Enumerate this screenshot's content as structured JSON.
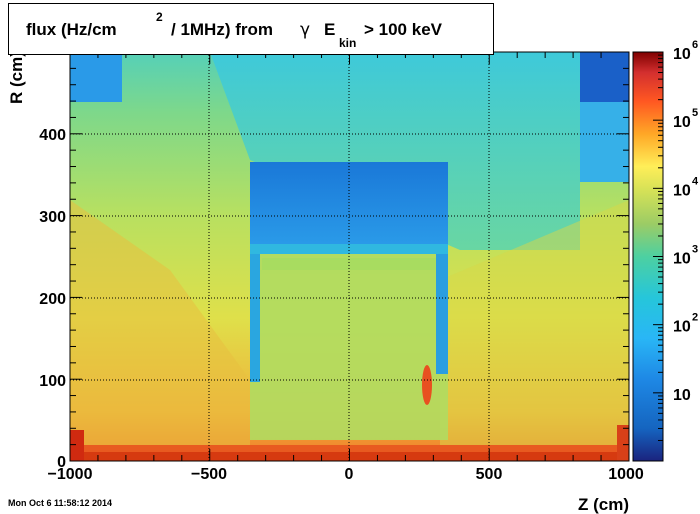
{
  "title": {
    "part1": "flux (Hz/cm",
    "sup": "2",
    "part2": "/ 1MHz) from",
    "gamma": "γ",
    "E": "E",
    "sub": "kin",
    "part3": "> 100 keV"
  },
  "footer": "Mon Oct  6 11:58:12 2014",
  "chart_data": {
    "type": "heatmap",
    "xlabel": "Z (cm)",
    "ylabel": "R (cm)",
    "xlim": [
      -1000,
      1000
    ],
    "ylim": [
      0,
      500
    ],
    "x_ticks": [
      -1000,
      -500,
      0,
      500,
      1000
    ],
    "x_tick_labels": [
      "−1000",
      "−500",
      "0",
      "500",
      "1000"
    ],
    "y_ticks": [
      0,
      100,
      200,
      300,
      400
    ],
    "y_tick_labels": [
      "0",
      "100",
      "200",
      "300",
      "400"
    ],
    "grid": true,
    "colorbar": {
      "scale": "log",
      "range": [
        1,
        1000000
      ],
      "ticks": [
        10,
        100,
        1000,
        10000,
        100000,
        1000000
      ],
      "tick_labels": [
        {
          "base": "10",
          "exp": ""
        },
        {
          "base": "10",
          "exp": "2"
        },
        {
          "base": "10",
          "exp": "3"
        },
        {
          "base": "10",
          "exp": "4"
        },
        {
          "base": "10",
          "exp": "5"
        },
        {
          "base": "10",
          "exp": "6"
        }
      ]
    },
    "colors": {
      "low": "#08306b",
      "mid_low": "#2aa6e8",
      "mid": "#6fd89a",
      "mid_high": "#e6e640",
      "high": "#e8501a",
      "max": "#7a0000"
    }
  }
}
